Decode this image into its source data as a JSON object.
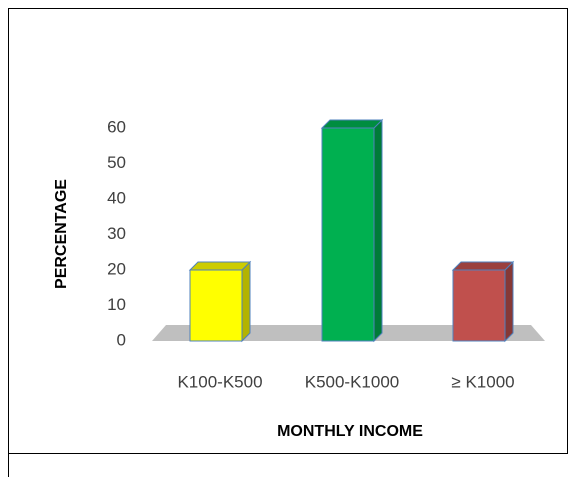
{
  "chart_data": {
    "type": "bar3d",
    "xlabel": "MONTHLY INCOME",
    "ylabel": "PERCENTAGE",
    "categories": [
      "K100-K500",
      "K500-K1000",
      "≥ K1000"
    ],
    "values": [
      20,
      60,
      20
    ],
    "colors": [
      "#ffff00",
      "#00b050",
      "#c0504d"
    ],
    "ylim": [
      0,
      60
    ],
    "yticks": [
      0,
      10,
      20,
      30,
      40,
      50,
      60
    ],
    "grid": false
  }
}
